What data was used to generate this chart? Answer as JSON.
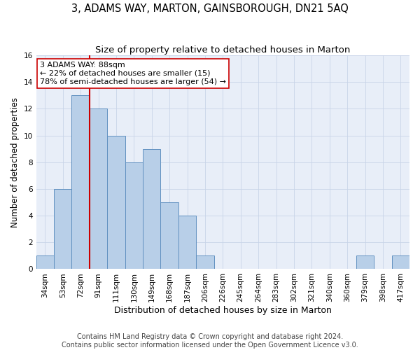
{
  "title": "3, ADAMS WAY, MARTON, GAINSBOROUGH, DN21 5AQ",
  "subtitle": "Size of property relative to detached houses in Marton",
  "xlabel": "Distribution of detached houses by size in Marton",
  "ylabel": "Number of detached properties",
  "categories": [
    "34sqm",
    "53sqm",
    "72sqm",
    "91sqm",
    "111sqm",
    "130sqm",
    "149sqm",
    "168sqm",
    "187sqm",
    "206sqm",
    "226sqm",
    "245sqm",
    "264sqm",
    "283sqm",
    "302sqm",
    "321sqm",
    "340sqm",
    "360sqm",
    "379sqm",
    "398sqm",
    "417sqm"
  ],
  "values": [
    1,
    6,
    13,
    12,
    10,
    8,
    9,
    5,
    4,
    1,
    0,
    0,
    0,
    0,
    0,
    0,
    0,
    0,
    1,
    0,
    1
  ],
  "bar_color": "#b8cfe8",
  "bar_edge_color": "#6090c0",
  "bar_edge_width": 0.7,
  "vline_color": "#cc0000",
  "vline_x": 2.5,
  "annotation_line1": "3 ADAMS WAY: 88sqm",
  "annotation_line2": "← 22% of detached houses are smaller (15)",
  "annotation_line3": "78% of semi-detached houses are larger (54) →",
  "annotation_box_color": "#ffffff",
  "annotation_box_edge_color": "#cc0000",
  "ylim": [
    0,
    16
  ],
  "yticks": [
    0,
    2,
    4,
    6,
    8,
    10,
    12,
    14,
    16
  ],
  "grid_color": "#c8d4e8",
  "background_color": "#e8eef8",
  "footer_text": "Contains HM Land Registry data © Crown copyright and database right 2024.\nContains public sector information licensed under the Open Government Licence v3.0.",
  "title_fontsize": 10.5,
  "subtitle_fontsize": 9.5,
  "xlabel_fontsize": 9,
  "ylabel_fontsize": 8.5,
  "tick_fontsize": 7.5,
  "annotation_fontsize": 8,
  "footer_fontsize": 7
}
